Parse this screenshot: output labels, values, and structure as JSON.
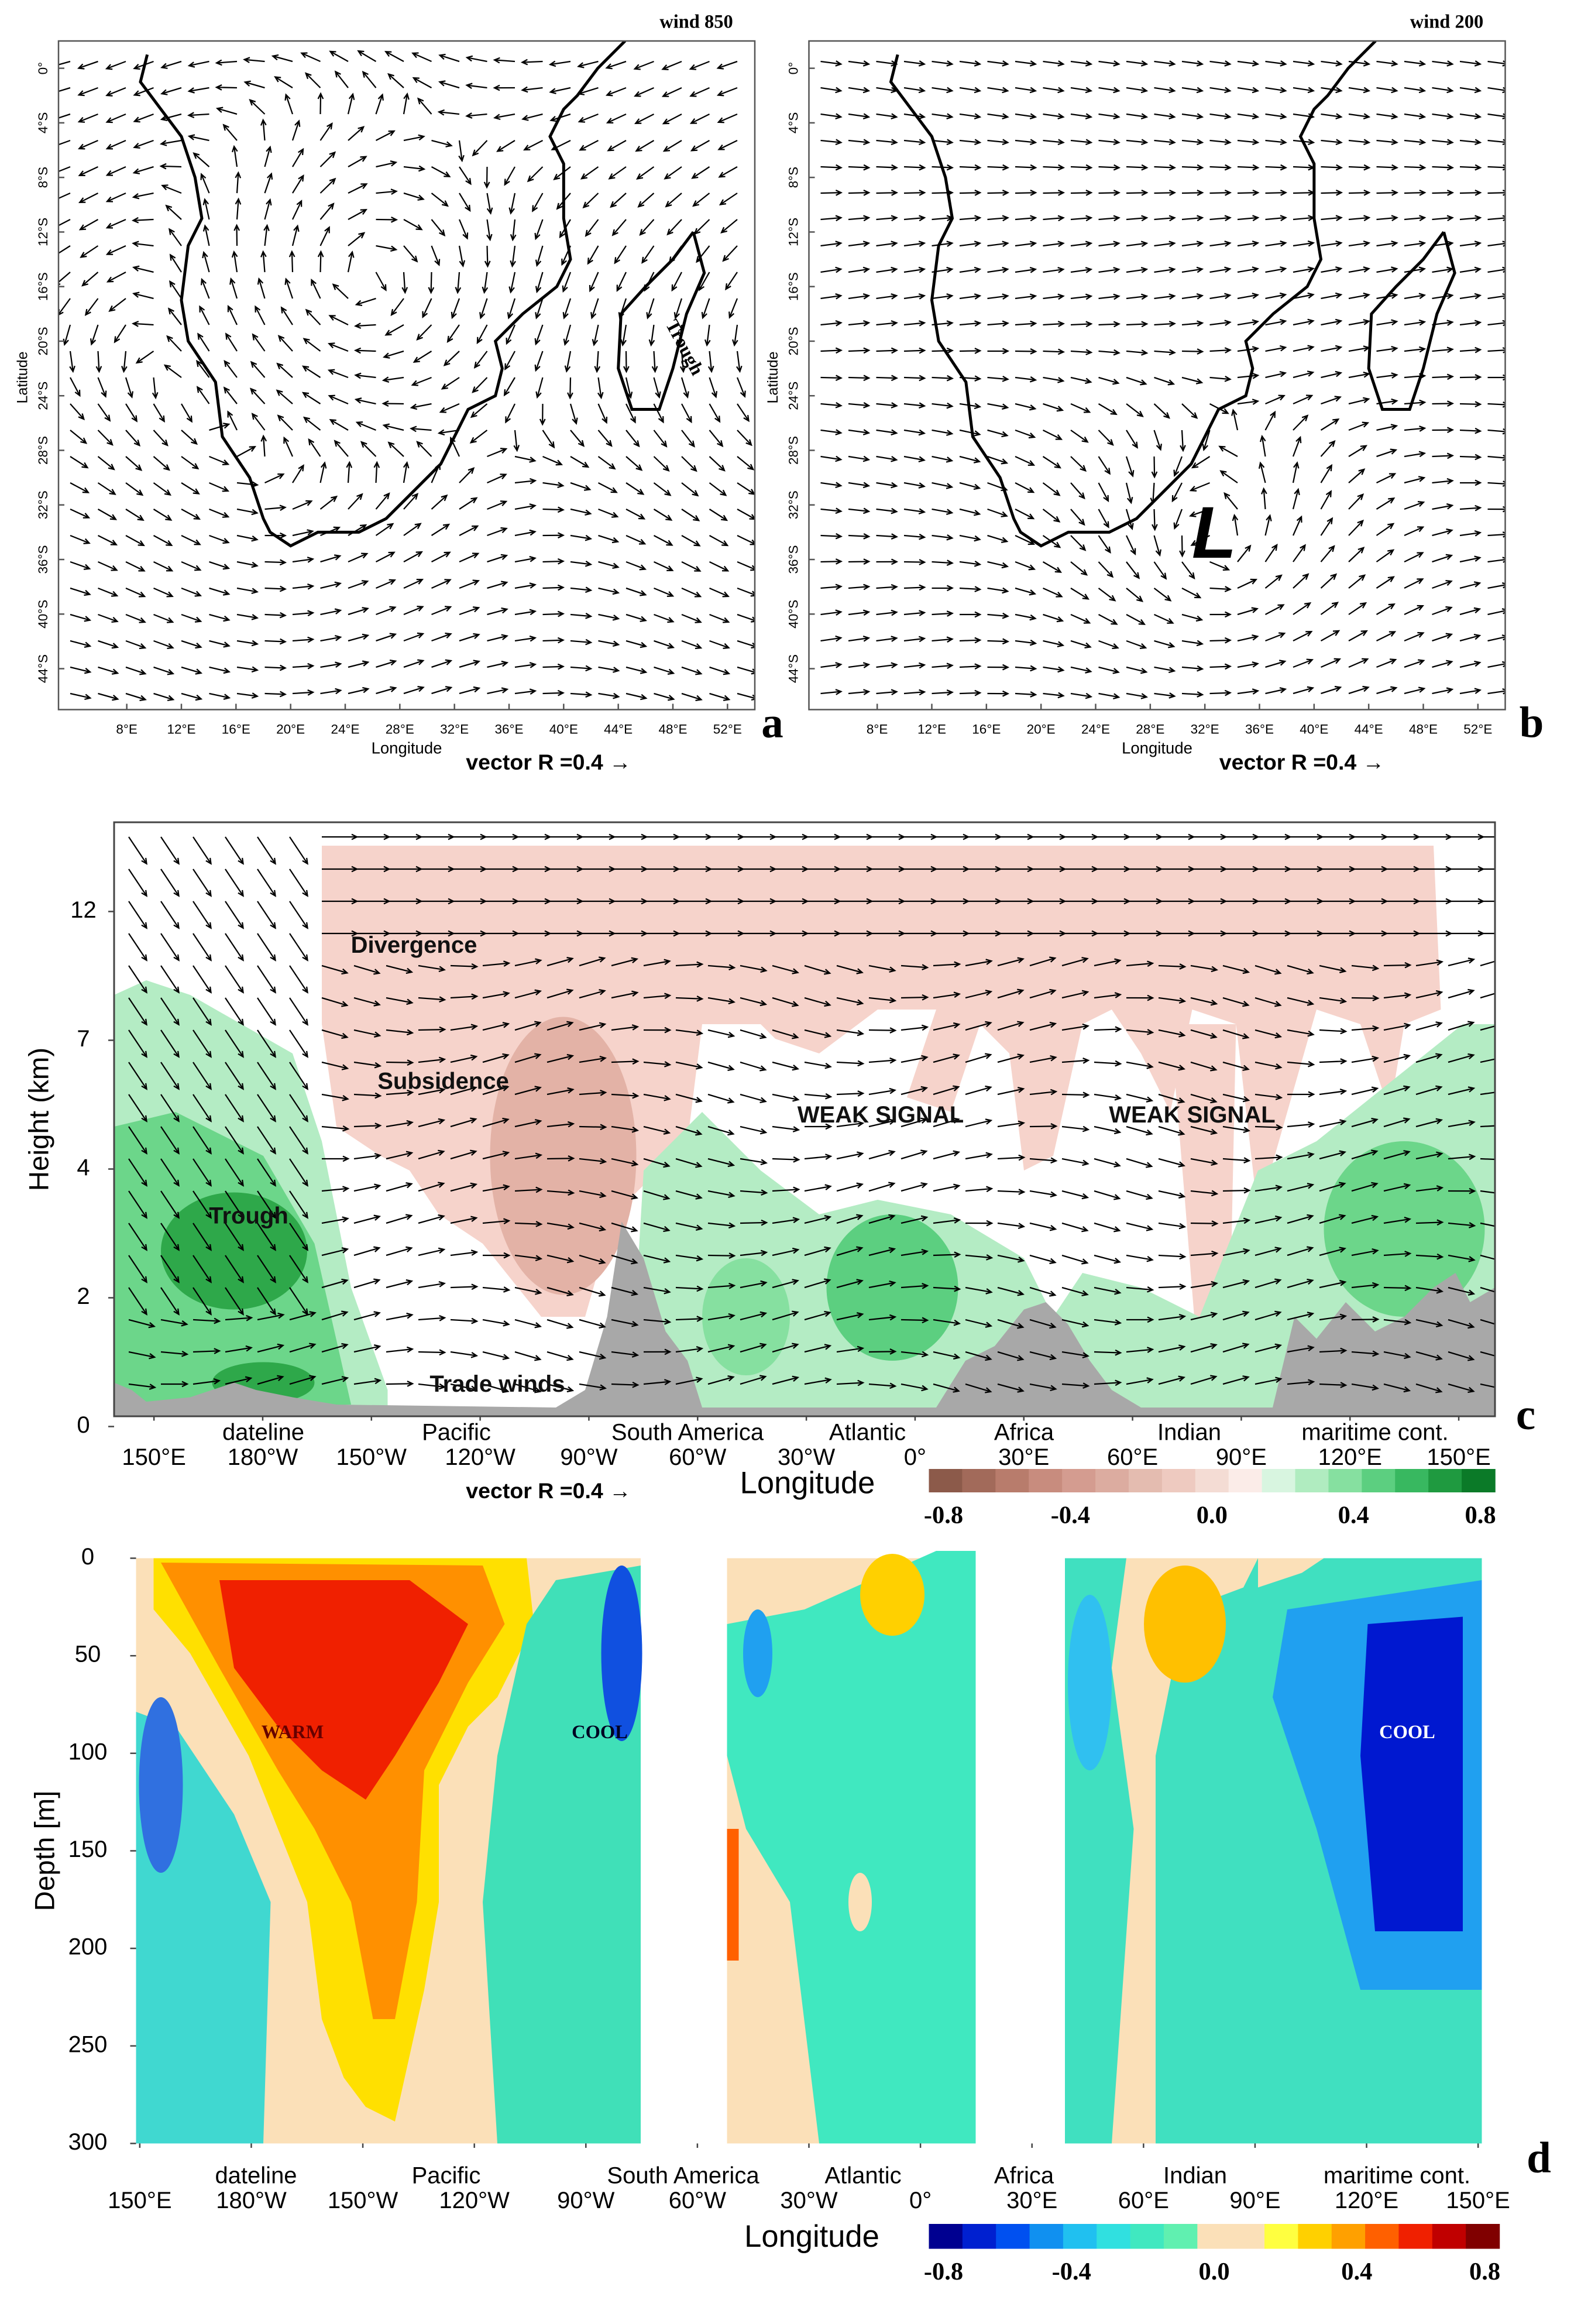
{
  "chart_data": [
    {
      "type": "vector-map",
      "panel": "a",
      "label": "wind 850",
      "xlabel": "Longitude",
      "ylabel": "Latitude",
      "vector_key": "vector R =0.4 →",
      "annotations": [
        "Trough"
      ],
      "xlim": [
        3,
        54
      ],
      "ylim": [
        -47,
        2
      ],
      "xticks": [
        {
          "value": 8,
          "label": "8°E"
        },
        {
          "value": 12,
          "label": "12°E"
        },
        {
          "value": 16,
          "label": "16°E"
        },
        {
          "value": 20,
          "label": "20°E"
        },
        {
          "value": 24,
          "label": "24°E"
        },
        {
          "value": 28,
          "label": "28°E"
        },
        {
          "value": 32,
          "label": "32°E"
        },
        {
          "value": 36,
          "label": "36°E"
        },
        {
          "value": 40,
          "label": "40°E"
        },
        {
          "value": 44,
          "label": "44°E"
        },
        {
          "value": 48,
          "label": "48°E"
        },
        {
          "value": 52,
          "label": "52°E"
        }
      ],
      "yticks": [
        {
          "value": 0,
          "label": "0°"
        },
        {
          "value": -4,
          "label": "4°S"
        },
        {
          "value": -8,
          "label": "8°S"
        },
        {
          "value": -12,
          "label": "12°S"
        },
        {
          "value": -16,
          "label": "16°S"
        },
        {
          "value": -20,
          "label": "20°S"
        },
        {
          "value": -24,
          "label": "24°S"
        },
        {
          "value": -28,
          "label": "28°S"
        },
        {
          "value": -32,
          "label": "32°S"
        },
        {
          "value": -36,
          "label": "36°S"
        },
        {
          "value": -40,
          "label": "40°S"
        },
        {
          "value": -44,
          "label": "44°S"
        }
      ]
    },
    {
      "type": "vector-map",
      "panel": "b",
      "label": "wind 200",
      "xlabel": "Longitude",
      "ylabel": "Latitude",
      "vector_key": "vector R =0.4 →",
      "annotations": [
        "L"
      ],
      "xlim": [
        3,
        54
      ],
      "ylim": [
        -47,
        2
      ],
      "xticks": [
        {
          "value": 8,
          "label": "8°E"
        },
        {
          "value": 12,
          "label": "12°E"
        },
        {
          "value": 16,
          "label": "16°E"
        },
        {
          "value": 20,
          "label": "20°E"
        },
        {
          "value": 24,
          "label": "24°E"
        },
        {
          "value": 28,
          "label": "28°E"
        },
        {
          "value": 32,
          "label": "32°E"
        },
        {
          "value": 36,
          "label": "36°E"
        },
        {
          "value": 40,
          "label": "40°E"
        },
        {
          "value": 44,
          "label": "44°E"
        },
        {
          "value": 48,
          "label": "48°E"
        },
        {
          "value": 52,
          "label": "52°E"
        }
      ],
      "yticks": [
        {
          "value": 0,
          "label": "0°"
        },
        {
          "value": -4,
          "label": "4°S"
        },
        {
          "value": -8,
          "label": "8°S"
        },
        {
          "value": -12,
          "label": "12°S"
        },
        {
          "value": -16,
          "label": "16°S"
        },
        {
          "value": -20,
          "label": "20°S"
        },
        {
          "value": -24,
          "label": "24°S"
        },
        {
          "value": -28,
          "label": "28°S"
        },
        {
          "value": -32,
          "label": "32°S"
        },
        {
          "value": -36,
          "label": "36°S"
        },
        {
          "value": -40,
          "label": "40°S"
        },
        {
          "value": -44,
          "label": "44°S"
        }
      ]
    },
    {
      "type": "vector-section",
      "panel": "c",
      "xlabel": "Longitude",
      "ylabel": "Height (km)",
      "vector_key": "vector R =0.4 →",
      "annotations": [
        "Divergence",
        "Subsidence",
        "WEAK SIGNAL",
        "WEAK SIGNAL",
        "Trough",
        "Trade winds"
      ],
      "regions": [
        "dateline",
        "Pacific",
        "South America",
        "Atlantic",
        "Africa",
        "Indian",
        "maritime cont."
      ],
      "xlim": [
        139,
        520
      ],
      "xticks": [
        {
          "value": 150,
          "label": "150°E"
        },
        {
          "value": 180,
          "label": "180°W"
        },
        {
          "value": 210,
          "label": "150°W"
        },
        {
          "value": 240,
          "label": "120°W"
        },
        {
          "value": 270,
          "label": "90°W"
        },
        {
          "value": 300,
          "label": "60°W"
        },
        {
          "value": 330,
          "label": "30°W"
        },
        {
          "value": 360,
          "label": "0°"
        },
        {
          "value": 390,
          "label": "30°E"
        },
        {
          "value": 420,
          "label": "60°E"
        },
        {
          "value": 450,
          "label": "90°E"
        },
        {
          "value": 480,
          "label": "120°E"
        },
        {
          "value": 510,
          "label": "150°E"
        }
      ],
      "yticks": [
        0,
        2,
        4,
        7,
        12
      ],
      "colorbar": {
        "lim": [
          -0.8,
          0.8
        ],
        "ticks": [
          -0.8,
          -0.4,
          {
            "value": 0,
            "label": "0.0"
          },
          0.4,
          0.8
        ],
        "colors": [
          "#8c5a4a",
          "#a26a5a",
          "#b87c6c",
          "#c88c7e",
          "#d49c90",
          "#dcaca0",
          "#e4bcb0",
          "#eecac0",
          "#f4dcd4",
          "#fbece8",
          "#d8f5e0",
          "#b0ecc0",
          "#86e0a0",
          "#5ccf80",
          "#38b860",
          "#1f9a40",
          "#0b7a28"
        ]
      }
    },
    {
      "type": "contour-section",
      "panel": "d",
      "xlabel": "Longitude",
      "ylabel": "Depth [m]",
      "annotations": [
        "WARM",
        "COOL",
        "COOL"
      ],
      "regions": [
        "dateline",
        "Pacific",
        "South America",
        "Atlantic",
        "Africa",
        "Indian",
        "maritime cont."
      ],
      "xlim": [
        149,
        511
      ],
      "ylim": [
        0,
        300
      ],
      "y_inverted": true,
      "xticks": [
        {
          "value": 150,
          "label": "150°E"
        },
        {
          "value": 180,
          "label": "180°W"
        },
        {
          "value": 210,
          "label": "150°W"
        },
        {
          "value": 240,
          "label": "120°W"
        },
        {
          "value": 270,
          "label": "90°W"
        },
        {
          "value": 300,
          "label": "60°W"
        },
        {
          "value": 330,
          "label": "30°W"
        },
        {
          "value": 360,
          "label": "0°"
        },
        {
          "value": 390,
          "label": "30°E"
        },
        {
          "value": 420,
          "label": "60°E"
        },
        {
          "value": 450,
          "label": "90°E"
        },
        {
          "value": 480,
          "label": "120°E"
        },
        {
          "value": 510,
          "label": "150°E"
        }
      ],
      "yticks": [
        0,
        50,
        100,
        150,
        200,
        250,
        300
      ],
      "colorbar": {
        "lim": [
          -0.8,
          0.8
        ],
        "ticks": [
          -0.8,
          -0.4,
          {
            "value": 0,
            "label": "0.0"
          },
          0.4,
          0.8
        ],
        "colors": [
          "#000090",
          "#0020d0",
          "#0050f0",
          "#1090f0",
          "#20c0f0",
          "#30e0e0",
          "#40e8c0",
          "#60f0b0",
          "#fbe0b8",
          "#fbe0b8",
          "#ffff40",
          "#ffd000",
          "#ffa000",
          "#ff6000",
          "#f02000",
          "#c00000",
          "#800000"
        ]
      }
    }
  ]
}
